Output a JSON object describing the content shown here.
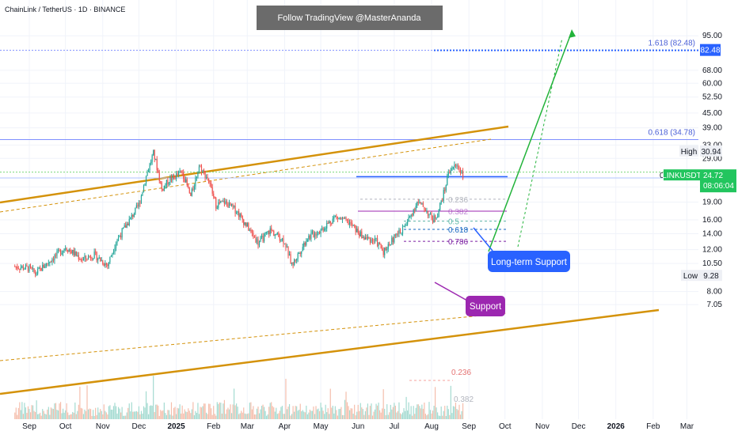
{
  "header": {
    "symbol_line": "ChainLink / TetherUS · 1D · BINANCE",
    "banner": "Follow TradingView @MasterAnanda"
  },
  "chart_data": {
    "type": "candlestick",
    "symbol": "LINKUSDT",
    "y_scale": "log",
    "y_ticks": [
      "95.00",
      "68.00",
      "60.00",
      "52.50",
      "45.00",
      "39.00",
      "33.00",
      "29.00",
      "22.00",
      "19.00",
      "16.00",
      "14.00",
      "12.00",
      "10.50",
      "8.00",
      "7.05"
    ],
    "y_tick_values": [
      95,
      68,
      60,
      52.5,
      45,
      39,
      33,
      29,
      22,
      19,
      16,
      14,
      12,
      10.5,
      8,
      7.05
    ],
    "x_ticks": [
      "Sep",
      "Oct",
      "Nov",
      "Dec",
      "2025",
      "Feb",
      "Mar",
      "Apr",
      "May",
      "Jun",
      "Jul",
      "Aug",
      "Sep",
      "Oct",
      "Nov",
      "Dec",
      "2026",
      "Feb",
      "Mar"
    ],
    "x_tick_dates": [
      "2024-09-01",
      "2024-10-01",
      "2024-11-01",
      "2024-12-01",
      "2025-01-01",
      "2025-02-01",
      "2025-03-01",
      "2025-04-01",
      "2025-05-01",
      "2025-06-01",
      "2025-07-01",
      "2025-08-01",
      "2025-09-01",
      "2025-10-01",
      "2025-11-01",
      "2025-12-01",
      "2026-01-01",
      "2026-02-01",
      "2026-03-01"
    ],
    "price_path": [
      [
        "2024-08-20",
        10.2
      ],
      [
        "2024-09-01",
        10.0
      ],
      [
        "2024-09-06",
        9.5
      ],
      [
        "2024-09-20",
        11.0
      ],
      [
        "2024-10-01",
        12.3
      ],
      [
        "2024-10-15",
        10.9
      ],
      [
        "2024-10-25",
        11.4
      ],
      [
        "2024-11-05",
        10.3
      ],
      [
        "2024-11-12",
        13.0
      ],
      [
        "2024-11-25",
        16.5
      ],
      [
        "2024-12-01",
        18.5
      ],
      [
        "2024-12-07",
        24.5
      ],
      [
        "2024-12-13",
        30.5
      ],
      [
        "2024-12-15",
        28.0
      ],
      [
        "2024-12-20",
        21.5
      ],
      [
        "2024-12-26",
        23.5
      ],
      [
        "2025-01-06",
        25.5
      ],
      [
        "2025-01-13",
        20.0
      ],
      [
        "2025-01-20",
        27.0
      ],
      [
        "2025-01-27",
        24.0
      ],
      [
        "2025-02-03",
        18.5
      ],
      [
        "2025-02-10",
        19.0
      ],
      [
        "2025-02-20",
        17.5
      ],
      [
        "2025-03-01",
        15.0
      ],
      [
        "2025-03-10",
        12.8
      ],
      [
        "2025-03-20",
        14.5
      ],
      [
        "2025-04-01",
        13.0
      ],
      [
        "2025-04-07",
        10.3
      ],
      [
        "2025-04-20",
        13.5
      ],
      [
        "2025-05-01",
        14.5
      ],
      [
        "2025-05-13",
        16.5
      ],
      [
        "2025-05-25",
        15.5
      ],
      [
        "2025-06-05",
        13.5
      ],
      [
        "2025-06-16",
        13.0
      ],
      [
        "2025-06-22",
        11.8
      ],
      [
        "2025-07-01",
        13.5
      ],
      [
        "2025-07-10",
        15.0
      ],
      [
        "2025-07-20",
        19.0
      ],
      [
        "2025-07-26",
        18.0
      ],
      [
        "2025-08-02",
        16.0
      ],
      [
        "2025-08-06",
        17.0
      ],
      [
        "2025-08-12",
        21.5
      ],
      [
        "2025-08-15",
        25.5
      ],
      [
        "2025-08-18",
        26.5
      ],
      [
        "2025-08-23",
        27.0
      ],
      [
        "2025-08-27",
        24.72
      ]
    ],
    "series": [
      {
        "name": "LINKUSDT",
        "last_value": 24.72
      }
    ],
    "price_labels": {
      "last_price": "24.72",
      "countdown": "08:06:04",
      "target": "82.48",
      "high_label": "High",
      "high_value": "30.94",
      "low_label": "Low",
      "low_value": "9.28",
      "zero_level": "0"
    },
    "fib_extension": [
      {
        "label": "1.618 (82.48)",
        "value": 82.48
      },
      {
        "label": "0.618 (34.78)",
        "value": 34.78
      }
    ],
    "fib_retracement": [
      {
        "label": "0.236",
        "value": 19.55
      },
      {
        "label": "0.382",
        "value": 17.4
      },
      {
        "label": "0.5",
        "value": 15.8
      },
      {
        "label": "0.618",
        "value": 14.6
      },
      {
        "label": "0.786",
        "value": 13.0
      }
    ],
    "volume_fib_labels": [
      "0.236",
      "0.382"
    ],
    "annotations": {
      "long_term_support": "Long-term Support",
      "support": "Support"
    },
    "colors": {
      "up": "#26a69a",
      "down": "#ef5350",
      "channel": "#d4920a",
      "target_arrow": "#22b33a",
      "label_blue": "#2962ff",
      "label_purple": "#9c27b0",
      "last_price_badge": "#22c55e"
    }
  }
}
